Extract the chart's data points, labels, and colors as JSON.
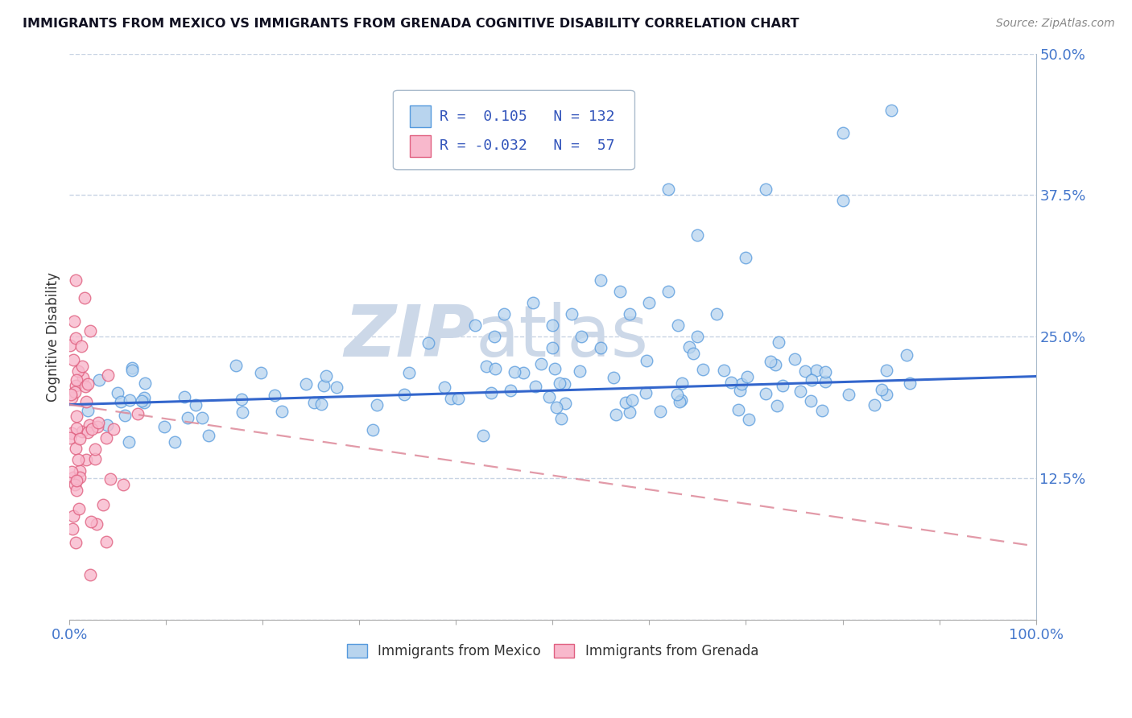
{
  "title": "IMMIGRANTS FROM MEXICO VS IMMIGRANTS FROM GRENADA COGNITIVE DISABILITY CORRELATION CHART",
  "source_text": "Source: ZipAtlas.com",
  "ylabel": "Cognitive Disability",
  "xlabel": "",
  "xlim": [
    0,
    1.0
  ],
  "ylim": [
    0,
    0.5
  ],
  "yticks": [
    0.0,
    0.125,
    0.25,
    0.375,
    0.5
  ],
  "ytick_labels": [
    "",
    "12.5%",
    "25.0%",
    "37.5%",
    "50.0%"
  ],
  "r_mexico": 0.105,
  "n_mexico": 132,
  "r_grenada": -0.032,
  "n_grenada": 57,
  "legend_label_mexico": "Immigrants from Mexico",
  "legend_label_grenada": "Immigrants from Grenada",
  "color_mexico_face": "#b8d4ee",
  "color_mexico_edge": "#5599dd",
  "color_grenada_face": "#f8b8cc",
  "color_grenada_edge": "#e06080",
  "color_mexico_line": "#3366cc",
  "color_grenada_line": "#dd8899",
  "background_color": "#ffffff",
  "grid_color": "#c8d4e4",
  "title_color": "#111122",
  "watermark_color": "#ccd8e8",
  "seed": 17
}
